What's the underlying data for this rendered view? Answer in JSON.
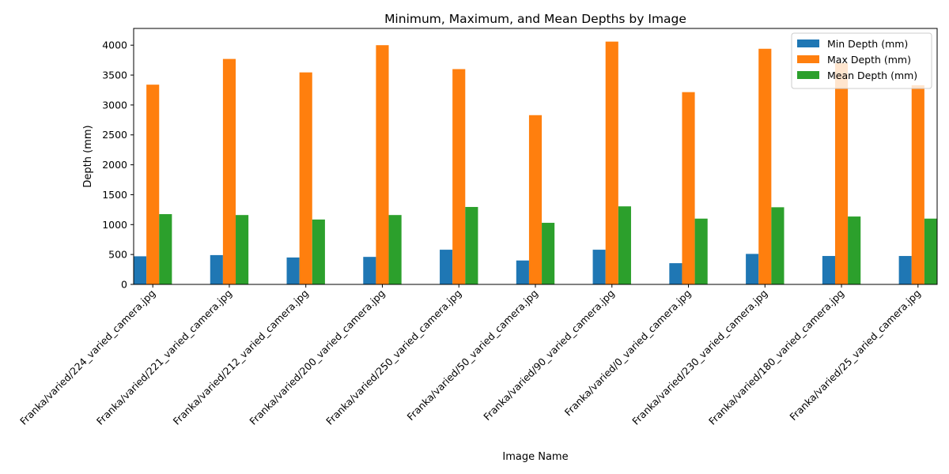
{
  "chart_data": {
    "type": "bar",
    "title": "Minimum, Maximum, and Mean Depths by Image",
    "xlabel": "Image Name",
    "ylabel": "Depth (mm)",
    "ylim": [
      0,
      4280
    ],
    "yticks": [
      0,
      500,
      1000,
      1500,
      2000,
      2500,
      3000,
      3500,
      4000
    ],
    "grid": false,
    "legend_position": "top-right",
    "categories": [
      "Franka/varied/224_varied_camera.jpg",
      "Franka/varied/221_varied_camera.jpg",
      "Franka/varied/212_varied_camera.jpg",
      "Franka/varied/200_varied_camera.jpg",
      "Franka/varied/250_varied_camera.jpg",
      "Franka/varied/50_varied_camera.jpg",
      "Franka/varied/90_varied_camera.jpg",
      "Franka/varied/0_varied_camera.jpg",
      "Franka/varied/230_varied_camera.jpg",
      "Franka/varied/180_varied_camera.jpg",
      "Franka/varied/25_varied_camera.jpg"
    ],
    "series": [
      {
        "name": "Min Depth (mm)",
        "color": "#1f77b4",
        "values": [
          470,
          490,
          450,
          460,
          580,
          400,
          580,
          355,
          510,
          475,
          475
        ]
      },
      {
        "name": "Max Depth (mm)",
        "color": "#ff7f0e",
        "values": [
          3340,
          3770,
          3545,
          4000,
          3600,
          2830,
          4060,
          3215,
          3940,
          3700,
          3330
        ]
      },
      {
        "name": "Mean Depth (mm)",
        "color": "#2ca02c",
        "values": [
          1175,
          1160,
          1085,
          1160,
          1295,
          1030,
          1305,
          1100,
          1290,
          1135,
          1100
        ]
      }
    ]
  }
}
